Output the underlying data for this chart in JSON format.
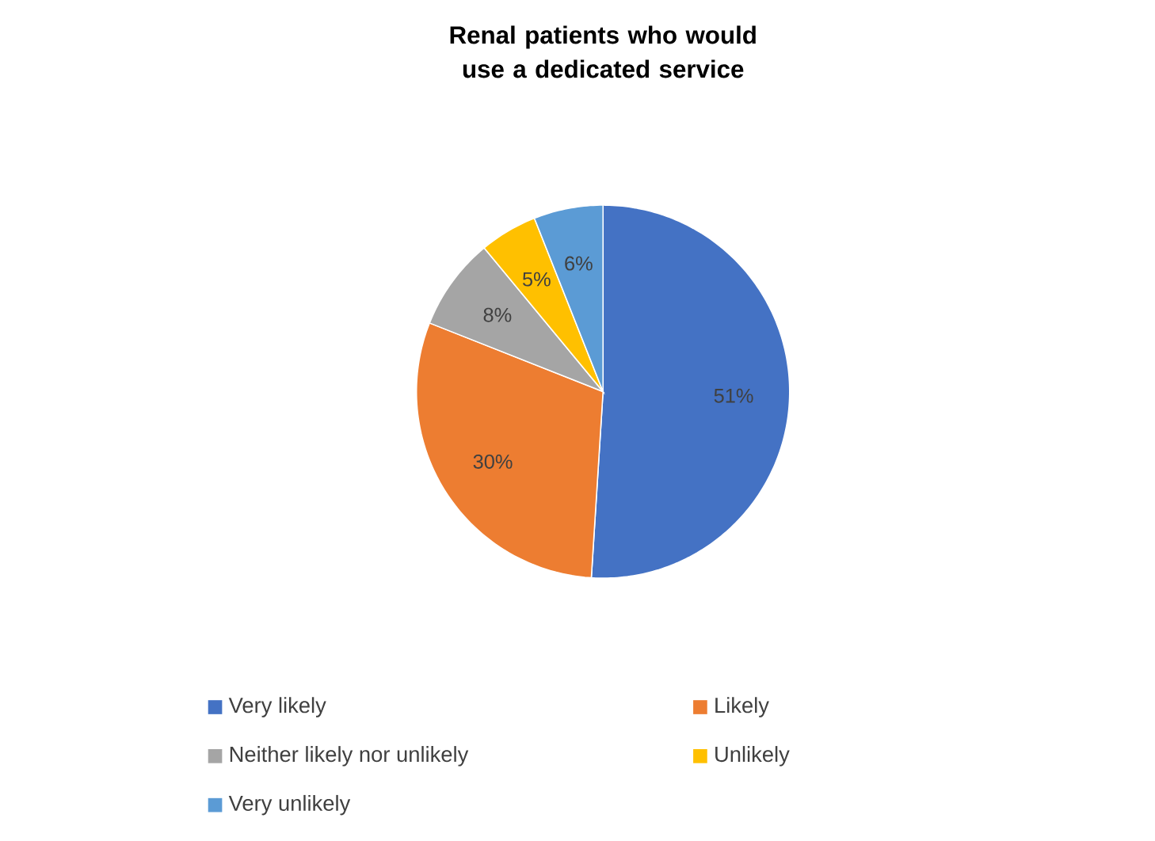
{
  "chart_data": {
    "type": "pie",
    "title": "Renal patients who would use a dedicated service",
    "categories": [
      "Very likely",
      "Likely",
      "Neither likely nor unlikely",
      "Unlikely",
      "Very unlikely"
    ],
    "values": [
      51,
      30,
      8,
      5,
      6
    ],
    "value_labels": [
      "51%",
      "30%",
      "8%",
      "5%",
      "6%"
    ],
    "colors": [
      "#4472c4",
      "#ed7d31",
      "#a5a5a5",
      "#ffc000",
      "#5b9bd5"
    ],
    "legend": "bottom"
  }
}
